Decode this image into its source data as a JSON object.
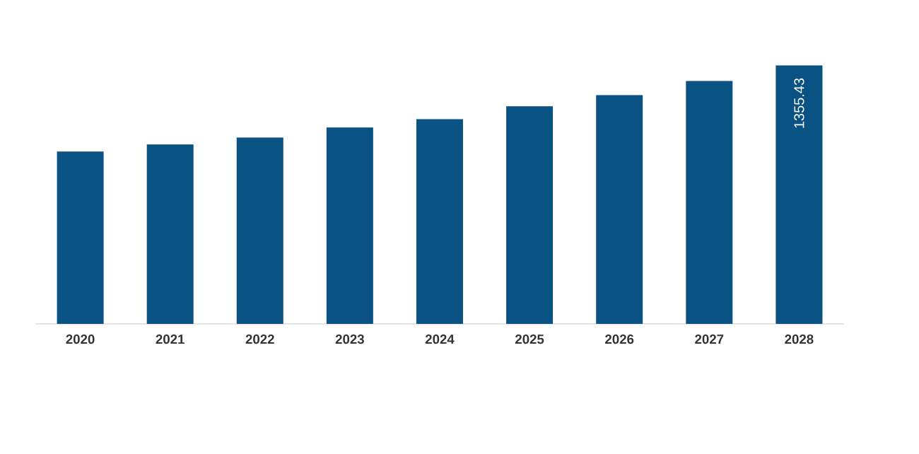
{
  "chart_data": {
    "type": "bar",
    "categories": [
      "2020",
      "2021",
      "2022",
      "2023",
      "2024",
      "2025",
      "2026",
      "2027",
      "2028"
    ],
    "values": [
      904,
      941,
      977,
      1030,
      1074,
      1141,
      1200,
      1274,
      1355.43
    ],
    "color": "#0b5284",
    "value_labels": [
      null,
      null,
      null,
      null,
      null,
      null,
      null,
      null,
      "1355.43"
    ]
  }
}
